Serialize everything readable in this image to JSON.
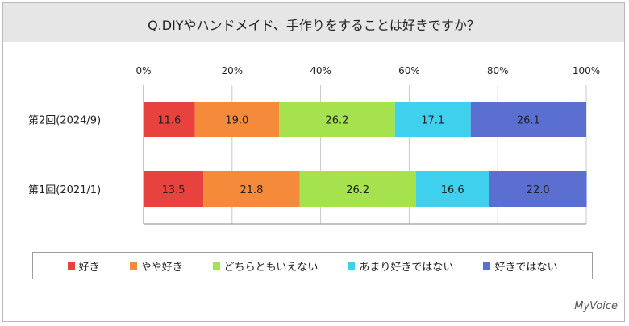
{
  "title": "Q.DIYやハンドメイド、手作りをすることは好きですか？",
  "brand": "MyVoice",
  "chart_data": {
    "type": "bar",
    "orientation": "horizontal",
    "stacked": true,
    "xlim": [
      0,
      100
    ],
    "x_ticks": [
      "0%",
      "20%",
      "40%",
      "60%",
      "80%",
      "100%"
    ],
    "grid": true,
    "legend_placement": "bottom",
    "categories": [
      "第2回(2024/9)",
      "第1回(2021/1)"
    ],
    "series": [
      {
        "name": "好き",
        "color": "#e8423f",
        "values": [
          11.6,
          13.5
        ]
      },
      {
        "name": "やや好き",
        "color": "#f48a3a",
        "values": [
          19.0,
          21.8
        ]
      },
      {
        "name": "どちらともいえない",
        "color": "#a6e24d",
        "values": [
          26.2,
          26.2
        ]
      },
      {
        "name": "あまり好きではない",
        "color": "#3fd0ee",
        "values": [
          17.1,
          16.6
        ]
      },
      {
        "name": "好きではない",
        "color": "#5a6fd0",
        "values": [
          26.1,
          22.0
        ]
      }
    ],
    "value_labels": [
      [
        "11.6",
        "13.5"
      ],
      [
        "19.0",
        "21.8"
      ],
      [
        "26.2",
        "26.2"
      ],
      [
        "17.1",
        "16.6"
      ],
      [
        "26.1",
        "22.0"
      ]
    ]
  }
}
